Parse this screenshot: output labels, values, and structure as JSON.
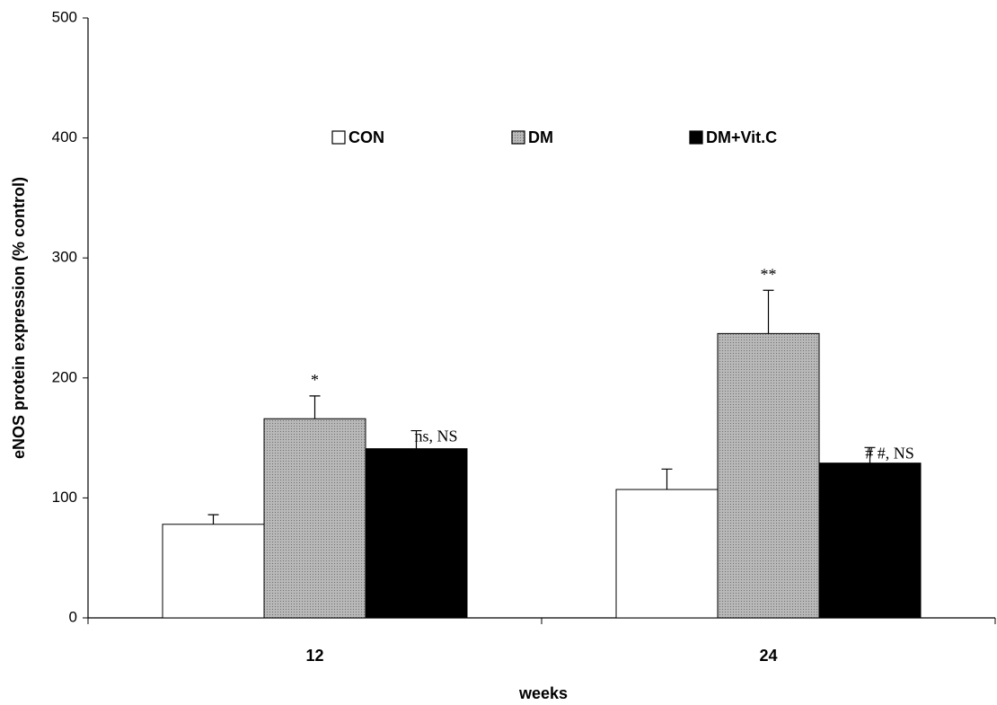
{
  "chart_data": {
    "type": "bar",
    "x_label": "weeks",
    "y_label": "eNOS protein expression (% control)",
    "categories": [
      "12",
      "24"
    ],
    "ylim": [
      0,
      500
    ],
    "yticks": [
      0,
      100,
      200,
      300,
      400,
      500
    ],
    "series": [
      {
        "name": "CON",
        "color": "#ffffff",
        "values": [
          78,
          107
        ],
        "errors": [
          8,
          17
        ],
        "annotations": [
          null,
          null
        ]
      },
      {
        "name": "DM",
        "color": "#a6a6a6",
        "values": [
          166,
          237
        ],
        "errors": [
          19,
          36
        ],
        "annotations": [
          "*",
          "**"
        ]
      },
      {
        "name": "DM+Vit.C",
        "color": "#000000",
        "values": [
          141,
          129
        ],
        "errors": [
          15,
          13
        ],
        "annotations": [
          "ns, NS",
          "# #, NS"
        ]
      }
    ]
  }
}
